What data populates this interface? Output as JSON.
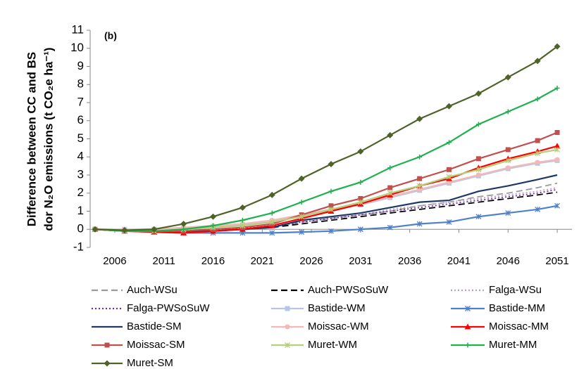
{
  "chart_data": {
    "type": "line",
    "y_label_lines": [
      "Difference between CC and BS",
      "dor N₂O emissions (t CO₂e ha⁻¹)"
    ],
    "annotation": "(b)",
    "x": [
      2004,
      2007,
      2010,
      2013,
      2016,
      2019,
      2022,
      2025,
      2028,
      2031,
      2034,
      2037,
      2040,
      2043,
      2046,
      2049,
      2051
    ],
    "xlim": [
      2003.5,
      2052.5
    ],
    "xticks": [
      2006,
      2011,
      2016,
      2021,
      2026,
      2031,
      2036,
      2041,
      2046,
      2051
    ],
    "ylim": [
      -1,
      11
    ],
    "yticks": [
      -1,
      0,
      1,
      2,
      3,
      4,
      5,
      6,
      7,
      8,
      9,
      10,
      11
    ],
    "series": [
      {
        "name": "Auch-WSu",
        "color": "#9a9a9a",
        "dash": "long",
        "marker": "none",
        "values": [
          0,
          -0.1,
          -0.1,
          -0.1,
          -0.1,
          0,
          0.1,
          0.4,
          0.6,
          0.8,
          1.0,
          1.3,
          1.5,
          1.8,
          2.0,
          2.3,
          2.55
        ]
      },
      {
        "name": "Auch-PWSoSuW",
        "color": "#000000",
        "dash": "long",
        "marker": "none",
        "values": [
          0,
          -0.1,
          -0.1,
          -0.15,
          -0.1,
          0,
          0.1,
          0.3,
          0.5,
          0.7,
          0.9,
          1.1,
          1.3,
          1.5,
          1.7,
          1.9,
          2.05
        ]
      },
      {
        "name": "Falga-WSu",
        "color": "#b0a0c8",
        "dash": "dot",
        "marker": "none",
        "values": [
          0,
          -0.1,
          -0.1,
          -0.05,
          0,
          0.1,
          0.2,
          0.4,
          0.6,
          0.8,
          1.1,
          1.3,
          1.5,
          1.7,
          1.9,
          2.1,
          2.3
        ]
      },
      {
        "name": "Falga-PWSoSuW",
        "color": "#7030a0",
        "dash": "dot",
        "marker": "none",
        "values": [
          0,
          -0.1,
          -0.1,
          -0.1,
          -0.05,
          0.05,
          0.15,
          0.4,
          0.6,
          0.8,
          1.0,
          1.2,
          1.4,
          1.6,
          1.8,
          2.0,
          2.2
        ]
      },
      {
        "name": "Bastide-WM",
        "color": "#b4c8e6",
        "dash": "solid",
        "marker": "square",
        "values": [
          0,
          0,
          0,
          0.05,
          0.15,
          0.25,
          0.45,
          0.75,
          1.05,
          1.35,
          1.75,
          2.15,
          2.55,
          2.95,
          3.35,
          3.65,
          3.8
        ]
      },
      {
        "name": "Bastide-MM",
        "color": "#4f81c8",
        "dash": "solid",
        "marker": "star",
        "values": [
          0,
          -0.1,
          -0.15,
          -0.2,
          -0.2,
          -0.2,
          -0.2,
          -0.15,
          -0.1,
          0,
          0.1,
          0.3,
          0.4,
          0.7,
          0.9,
          1.1,
          1.3
        ]
      },
      {
        "name": "Bastide-SM",
        "color": "#1f3864",
        "dash": "solid",
        "marker": "none",
        "values": [
          0,
          -0.1,
          -0.1,
          -0.1,
          -0.1,
          0,
          0.1,
          0.5,
          0.7,
          0.9,
          1.2,
          1.5,
          1.6,
          2.1,
          2.4,
          2.75,
          3.0
        ]
      },
      {
        "name": "Moissac-WM",
        "color": "#f4b8b8",
        "dash": "solid",
        "marker": "circle",
        "values": [
          0,
          0,
          0,
          0.1,
          0.2,
          0.3,
          0.5,
          0.8,
          1.1,
          1.4,
          1.8,
          2.2,
          2.6,
          3.0,
          3.4,
          3.7,
          3.85
        ]
      },
      {
        "name": "Moissac-MM",
        "color": "#ff0000",
        "dash": "solid",
        "marker": "triangle",
        "values": [
          0,
          -0.1,
          -0.15,
          -0.2,
          -0.1,
          0,
          0.2,
          0.6,
          1.0,
          1.4,
          1.9,
          2.4,
          2.8,
          3.4,
          3.9,
          4.3,
          4.6
        ]
      },
      {
        "name": "Moissac-SM",
        "color": "#c0504d",
        "dash": "solid",
        "marker": "square",
        "values": [
          0,
          -0.1,
          -0.1,
          -0.1,
          0,
          0.1,
          0.3,
          0.8,
          1.3,
          1.7,
          2.3,
          2.8,
          3.3,
          3.9,
          4.4,
          4.9,
          5.35
        ]
      },
      {
        "name": "Muret-WM",
        "color": "#b5cf7a",
        "dash": "solid",
        "marker": "star",
        "values": [
          0,
          -0.1,
          -0.1,
          0,
          0.1,
          0.2,
          0.4,
          0.7,
          1.1,
          1.5,
          2.0,
          2.4,
          2.9,
          3.3,
          3.8,
          4.2,
          4.4
        ]
      },
      {
        "name": "Muret-MM",
        "color": "#1fb04f",
        "dash": "solid",
        "marker": "plus",
        "values": [
          0,
          -0.1,
          -0.1,
          0,
          0.2,
          0.5,
          0.9,
          1.5,
          2.1,
          2.6,
          3.4,
          4.0,
          4.8,
          5.8,
          6.5,
          7.2,
          7.8
        ]
      },
      {
        "name": "Muret-SM",
        "color": "#4f6228",
        "dash": "solid",
        "marker": "diamond",
        "values": [
          0,
          -0.05,
          0,
          0.3,
          0.7,
          1.2,
          1.9,
          2.8,
          3.6,
          4.3,
          5.2,
          6.1,
          6.8,
          7.5,
          8.4,
          9.3,
          10.1
        ]
      }
    ]
  }
}
